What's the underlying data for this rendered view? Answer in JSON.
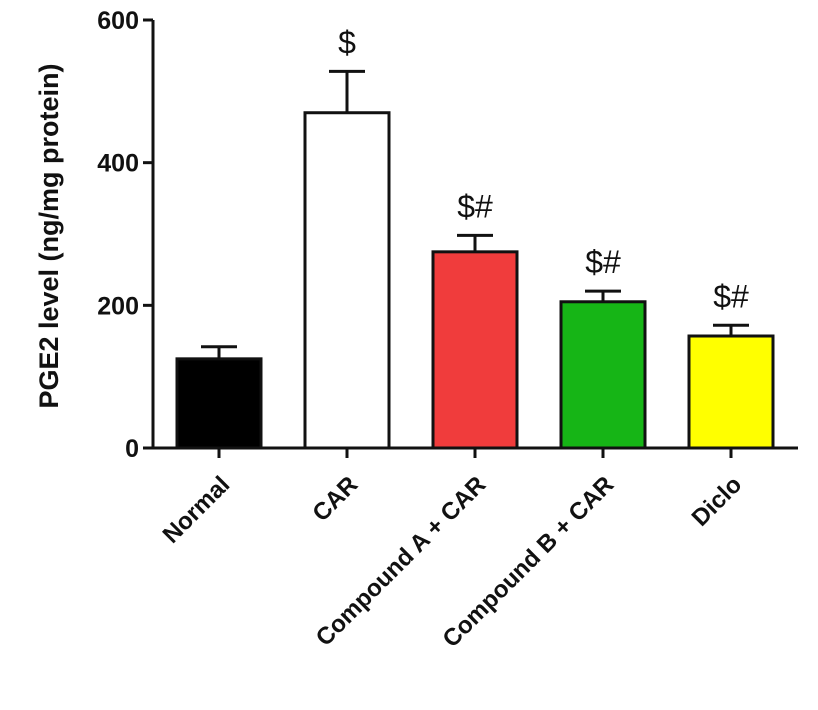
{
  "chart_data": {
    "type": "bar",
    "ylabel": "PGE2 level (ng/mg protein)",
    "xlabel": "",
    "ylim": [
      0,
      600
    ],
    "yticks": [
      0,
      200,
      400,
      600
    ],
    "grid": false,
    "categories": [
      "Normal",
      "CAR",
      "Compound A + CAR",
      "Compound B + CAR",
      "Diclo"
    ],
    "values": [
      125,
      470,
      275,
      205,
      157
    ],
    "errors": [
      17,
      58,
      23,
      15,
      15
    ],
    "colors": [
      "#000000",
      "#ffffff",
      "#f03c3c",
      "#16b516",
      "#ffff00"
    ],
    "significance": [
      "",
      "$",
      "$#",
      "$#",
      "$#"
    ]
  }
}
